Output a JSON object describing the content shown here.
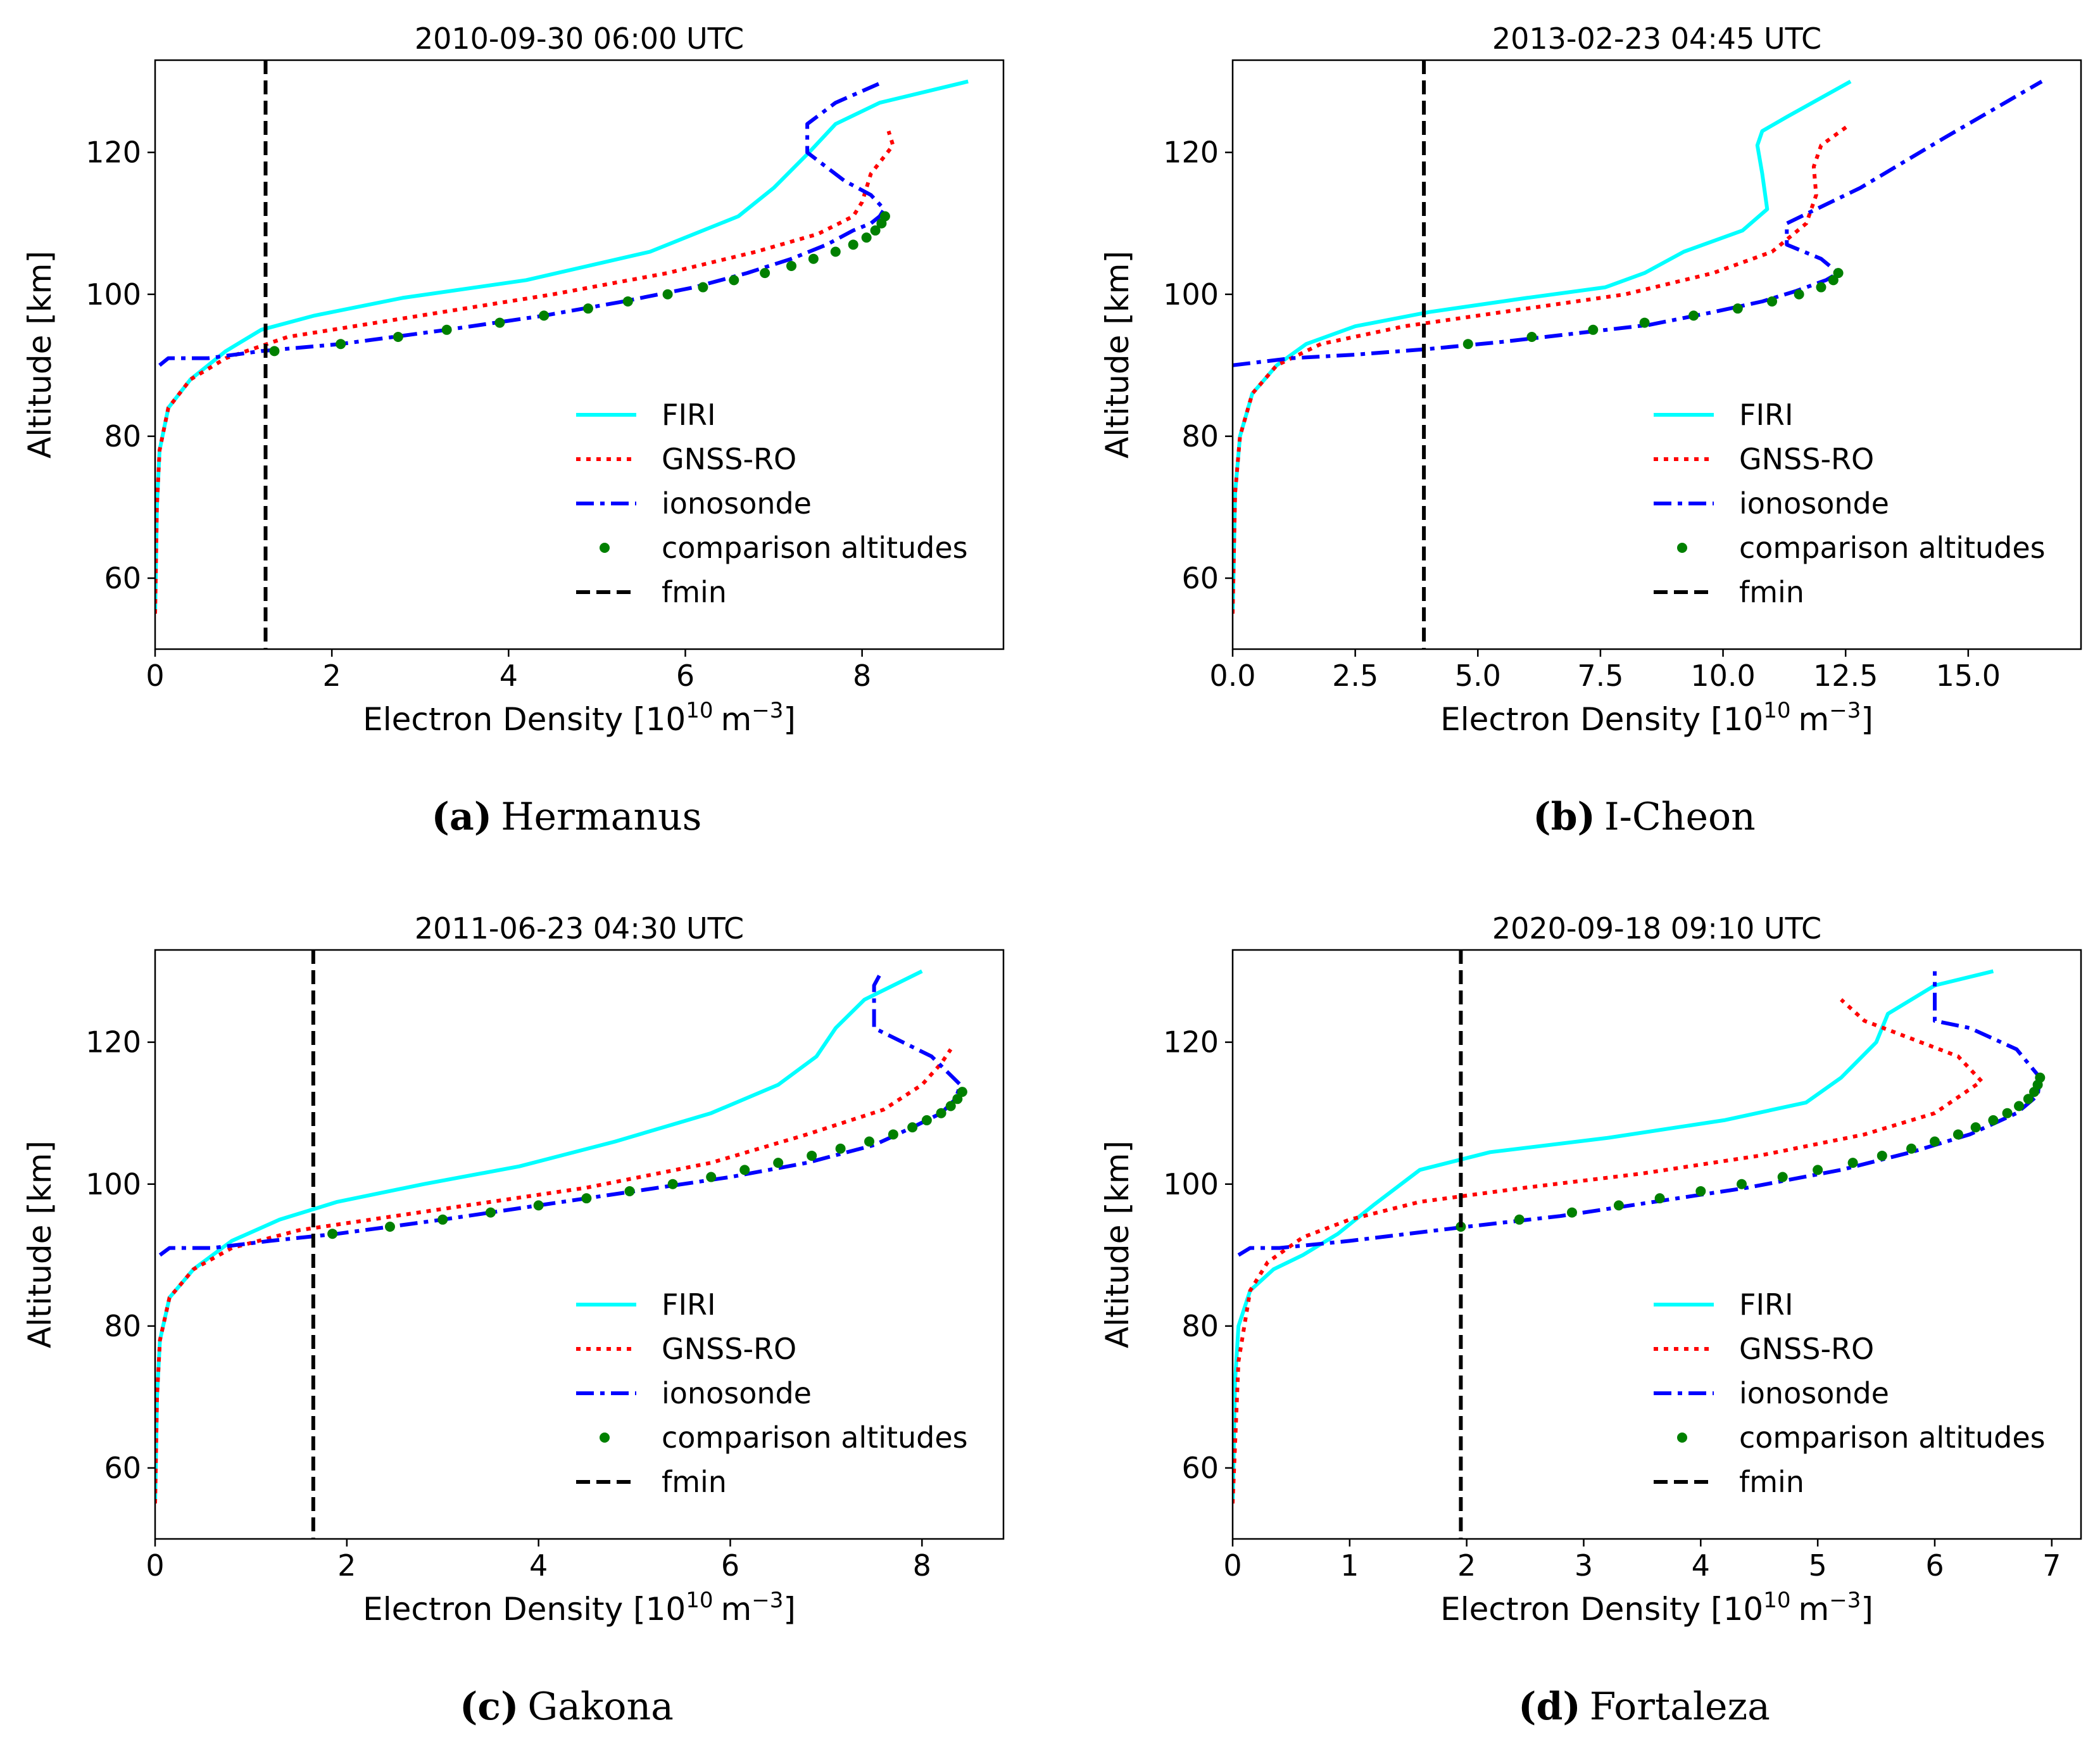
{
  "figure": {
    "colors": {
      "FIRI": "#00ffff",
      "GNSS-RO": "#ff0000",
      "ionosonde": "#0000ff",
      "comparison altitudes": "#008000",
      "fmin": "#000000"
    }
  },
  "chart_data": [
    {
      "type": "line",
      "title": "2010-09-30 06:00 UTC",
      "xlabel": "Electron Density [10",
      "xlabel_sup": "10",
      "xlabel_unit": "m",
      "xlabel_unit_sup": "−3",
      "xlabel_end": "]",
      "ylabel": "Altitude [km]",
      "xlim": [
        0,
        9.6
      ],
      "ylim": [
        50,
        133
      ],
      "xticks": [
        0,
        2,
        4,
        6,
        8
      ],
      "xtick_labels": [
        "0",
        "2",
        "4",
        "6",
        "8"
      ],
      "yticks": [
        60,
        80,
        100,
        120
      ],
      "ytick_labels": [
        "60",
        "80",
        "100",
        "120"
      ],
      "caption_letter": "(a)",
      "caption_text": "Hermanus",
      "legend": [
        "FIRI",
        "GNSS-RO",
        "ionosonde",
        "comparison altitudes",
        "fmin"
      ],
      "legend_position": "lower-right",
      "fmin": 1.25,
      "series": [
        {
          "name": "FIRI",
          "style": "solid",
          "x": [
            0,
            0.02,
            0.05,
            0.15,
            0.4,
            0.8,
            1.2,
            1.8,
            2.8,
            4.2,
            5.6,
            6.6,
            7.0,
            7.4,
            7.7,
            8.2,
            9.2
          ],
          "y": [
            55,
            70,
            78,
            84,
            88,
            92,
            95,
            97,
            99.5,
            102,
            106,
            111,
            115,
            120,
            124,
            127,
            130
          ]
        },
        {
          "name": "GNSS-RO",
          "style": "dotted",
          "x": [
            0,
            0.02,
            0.05,
            0.15,
            0.4,
            0.8,
            1.5,
            3.0,
            4.5,
            5.8,
            6.8,
            7.5,
            7.9,
            8.0,
            8.1,
            8.35,
            8.3
          ],
          "y": [
            55,
            70,
            78,
            84,
            88,
            91,
            94,
            97,
            100,
            103,
            106,
            108.5,
            111,
            113,
            117,
            121,
            123
          ]
        },
        {
          "name": "ionosonde",
          "style": "dashdot",
          "x": [
            0.05,
            0.15,
            0.6,
            1.2,
            2.1,
            3.3,
            4.4,
            5.3,
            6.1,
            6.7,
            7.2,
            7.6,
            7.9,
            8.1,
            8.2,
            8.25,
            8.1,
            7.8,
            7.38,
            7.38,
            7.7,
            8.25
          ],
          "y": [
            90,
            91,
            91,
            92,
            93,
            95,
            97,
            99,
            101,
            103,
            105,
            107,
            109,
            110,
            111,
            112,
            114,
            116,
            120,
            124,
            127,
            130
          ]
        },
        {
          "name": "comparison altitudes",
          "style": "marker",
          "x": [
            1.35,
            2.1,
            2.75,
            3.3,
            3.9,
            4.4,
            4.9,
            5.35,
            5.8,
            6.2,
            6.55,
            6.9,
            7.2,
            7.45,
            7.7,
            7.9,
            8.05,
            8.15,
            8.22,
            8.26
          ],
          "y": [
            92,
            93,
            94,
            95,
            96,
            97,
            98,
            99,
            100,
            101,
            102,
            103,
            104,
            105,
            106,
            107,
            108,
            109,
            110,
            111
          ]
        }
      ]
    },
    {
      "type": "line",
      "title": "2013-02-23 04:45 UTC",
      "xlabel": "Electron Density [10",
      "xlabel_sup": "10",
      "xlabel_unit": "m",
      "xlabel_unit_sup": "−3",
      "xlabel_end": "]",
      "ylabel": "Altitude [km]",
      "xlim": [
        0,
        17.3
      ],
      "ylim": [
        50,
        133
      ],
      "xticks": [
        0,
        2.5,
        5,
        7.5,
        10,
        12.5,
        15
      ],
      "xtick_labels": [
        "0.0",
        "2.5",
        "5.0",
        "7.5",
        "10.0",
        "12.5",
        "15.0"
      ],
      "yticks": [
        60,
        80,
        100,
        120
      ],
      "ytick_labels": [
        "60",
        "80",
        "100",
        "120"
      ],
      "caption_letter": "(b)",
      "caption_text": "I-Cheon",
      "legend": [
        "FIRI",
        "GNSS-RO",
        "ionosonde",
        "comparison altitudes",
        "fmin"
      ],
      "legend_position": "lower-right",
      "fmin": 3.9,
      "series": [
        {
          "name": "FIRI",
          "style": "solid",
          "x": [
            0,
            0.05,
            0.15,
            0.4,
            0.9,
            1.5,
            2.5,
            4.0,
            6.0,
            7.6,
            8.4,
            9.2,
            10.4,
            10.9,
            10.8,
            10.7,
            10.8,
            11.3,
            12.6
          ],
          "y": [
            55,
            72,
            80,
            86,
            90,
            93,
            95.5,
            97.5,
            99.5,
            101,
            103,
            106,
            109,
            112,
            117,
            121,
            123,
            125,
            130
          ]
        },
        {
          "name": "GNSS-RO",
          "style": "dotted",
          "x": [
            0,
            0.05,
            0.15,
            0.4,
            0.9,
            1.8,
            3.5,
            6.0,
            8.0,
            9.8,
            11.0,
            11.7,
            11.9,
            11.85,
            12.0,
            12.6
          ],
          "y": [
            55,
            72,
            80,
            86,
            90,
            93,
            95.5,
            98,
            100,
            103,
            106,
            110,
            114,
            118,
            121,
            124
          ]
        },
        {
          "name": "ionosonde",
          "style": "dashdot",
          "x": [
            0,
            1.2,
            2.5,
            4.0,
            5.5,
            7.0,
            8.5,
            9.8,
            10.8,
            11.5,
            12.1,
            12.35,
            12.0,
            11.3,
            11.3,
            12.8,
            14.5,
            16.5
          ],
          "y": [
            90,
            91,
            91.5,
            92.3,
            93.3,
            94.5,
            95.7,
            97.5,
            99,
            100.5,
            102,
            103,
            105,
            107,
            110,
            115,
            122,
            130
          ]
        },
        {
          "name": "comparison altitudes",
          "style": "marker",
          "x": [
            4.8,
            6.1,
            7.35,
            8.4,
            9.4,
            10.3,
            11.0,
            11.55,
            12.0,
            12.25,
            12.35
          ],
          "y": [
            93,
            94,
            95,
            96,
            97,
            98,
            99,
            100,
            101,
            102,
            103
          ]
        }
      ]
    },
    {
      "type": "line",
      "title": "2011-06-23 04:30 UTC",
      "xlabel": "Electron Density [10",
      "xlabel_sup": "10",
      "xlabel_unit": "m",
      "xlabel_unit_sup": "−3",
      "xlabel_end": "]",
      "ylabel": "Altitude [km]",
      "xlim": [
        0,
        8.85
      ],
      "ylim": [
        50,
        133
      ],
      "xticks": [
        0,
        2,
        4,
        6,
        8
      ],
      "xtick_labels": [
        "0",
        "2",
        "4",
        "6",
        "8"
      ],
      "yticks": [
        60,
        80,
        100,
        120
      ],
      "ytick_labels": [
        "60",
        "80",
        "100",
        "120"
      ],
      "caption_letter": "(c)",
      "caption_text": "Gakona",
      "legend": [
        "FIRI",
        "GNSS-RO",
        "ionosonde",
        "comparison altitudes",
        "fmin"
      ],
      "legend_position": "lower-right",
      "fmin": 1.65,
      "series": [
        {
          "name": "FIRI",
          "style": "solid",
          "x": [
            0,
            0.02,
            0.05,
            0.15,
            0.4,
            0.8,
            1.3,
            1.9,
            2.8,
            3.8,
            4.8,
            5.8,
            6.5,
            6.9,
            7.1,
            7.4,
            8.0
          ],
          "y": [
            55,
            70,
            78,
            84,
            88,
            92,
            95,
            97.5,
            100,
            102.5,
            106,
            110,
            114,
            118,
            122,
            126,
            130
          ]
        },
        {
          "name": "GNSS-RO",
          "style": "dotted",
          "x": [
            0,
            0.02,
            0.05,
            0.15,
            0.4,
            0.8,
            1.5,
            3.0,
            4.5,
            5.8,
            6.8,
            7.6,
            8.0,
            8.2,
            8.3
          ],
          "y": [
            55,
            70,
            78,
            84,
            88,
            91,
            93.5,
            96.5,
            99.5,
            103,
            107,
            110.5,
            114,
            117,
            119
          ]
        },
        {
          "name": "ionosonde",
          "style": "dashdot",
          "x": [
            0.05,
            0.15,
            0.6,
            1.2,
            1.9,
            3.0,
            4.0,
            5.0,
            6.0,
            6.8,
            7.5,
            7.9,
            8.2,
            8.35,
            8.4,
            8.1,
            7.5,
            7.5,
            7.58
          ],
          "y": [
            90,
            91,
            91,
            92,
            93,
            95,
            97,
            99,
            101,
            103,
            105.5,
            108,
            110,
            112,
            114,
            118,
            122,
            128,
            130
          ]
        },
        {
          "name": "comparison altitudes",
          "style": "marker",
          "x": [
            1.85,
            2.45,
            3.0,
            3.5,
            4.0,
            4.5,
            4.95,
            5.4,
            5.8,
            6.15,
            6.5,
            6.85,
            7.15,
            7.45,
            7.7,
            7.9,
            8.05,
            8.2,
            8.3,
            8.37,
            8.42
          ],
          "y": [
            93,
            94,
            95,
            96,
            97,
            98,
            99,
            100,
            101,
            102,
            103,
            104,
            105,
            106,
            107,
            108,
            109,
            110,
            111,
            112,
            113
          ]
        }
      ]
    },
    {
      "type": "line",
      "title": "2020-09-18 09:10 UTC",
      "xlabel": "Electron Density [10",
      "xlabel_sup": "10",
      "xlabel_unit": "m",
      "xlabel_unit_sup": "−3",
      "xlabel_end": "]",
      "ylabel": "Altitude [km]",
      "xlim": [
        0,
        7.25
      ],
      "ylim": [
        50,
        133
      ],
      "xticks": [
        0,
        1,
        2,
        3,
        4,
        5,
        6,
        7
      ],
      "xtick_labels": [
        "0",
        "1",
        "2",
        "3",
        "4",
        "5",
        "6",
        "7"
      ],
      "yticks": [
        60,
        80,
        100,
        120
      ],
      "ytick_labels": [
        "60",
        "80",
        "100",
        "120"
      ],
      "caption_letter": "(d)",
      "caption_text": "Fortaleza",
      "legend": [
        "FIRI",
        "GNSS-RO",
        "ionosonde",
        "comparison altitudes",
        "fmin"
      ],
      "legend_position": "lower-right",
      "fmin": 1.95,
      "series": [
        {
          "name": "FIRI",
          "style": "solid",
          "x": [
            0,
            0.02,
            0.05,
            0.15,
            0.35,
            0.6,
            0.9,
            1.2,
            1.6,
            2.2,
            3.2,
            4.2,
            4.9,
            5.2,
            5.5,
            5.6,
            6.0,
            6.5
          ],
          "y": [
            55,
            72,
            80,
            85,
            88,
            90,
            93,
            97,
            102,
            104.5,
            106.5,
            109,
            111.5,
            115,
            120,
            124,
            128,
            130
          ]
        },
        {
          "name": "GNSS-RO",
          "style": "dotted",
          "x": [
            0,
            0.05,
            0.15,
            0.3,
            0.6,
            1.0,
            1.6,
            2.5,
            3.5,
            4.5,
            5.4,
            6.0,
            6.4,
            6.2,
            5.8,
            5.4,
            5.2
          ],
          "y": [
            55,
            75,
            85,
            89,
            92.5,
            95,
            97.5,
            99.5,
            101.5,
            104,
            107,
            110,
            114.5,
            118,
            120.5,
            123,
            126
          ]
        },
        {
          "name": "ionosonde",
          "style": "dashdot",
          "x": [
            0.05,
            0.15,
            0.4,
            1.0,
            1.5,
            2.0,
            2.8,
            3.6,
            4.4,
            5.2,
            5.8,
            6.3,
            6.7,
            6.88,
            6.9,
            6.7,
            6.3,
            6.0,
            6.0
          ],
          "y": [
            90,
            91,
            91,
            92,
            93,
            94,
            95.5,
            97.5,
            99.5,
            102,
            104.5,
            107,
            110,
            112.5,
            115,
            119,
            122,
            123,
            130
          ]
        },
        {
          "name": "comparison altitudes",
          "style": "marker",
          "x": [
            1.95,
            2.45,
            2.9,
            3.3,
            3.65,
            4.0,
            4.35,
            4.7,
            5.0,
            5.3,
            5.55,
            5.8,
            6.0,
            6.2,
            6.35,
            6.5,
            6.62,
            6.72,
            6.8,
            6.85,
            6.88,
            6.9
          ],
          "y": [
            94,
            95,
            96,
            97,
            98,
            99,
            100,
            101,
            102,
            103,
            104,
            105,
            106,
            107,
            108,
            109,
            110,
            111,
            112,
            113,
            114,
            115
          ]
        }
      ]
    }
  ]
}
